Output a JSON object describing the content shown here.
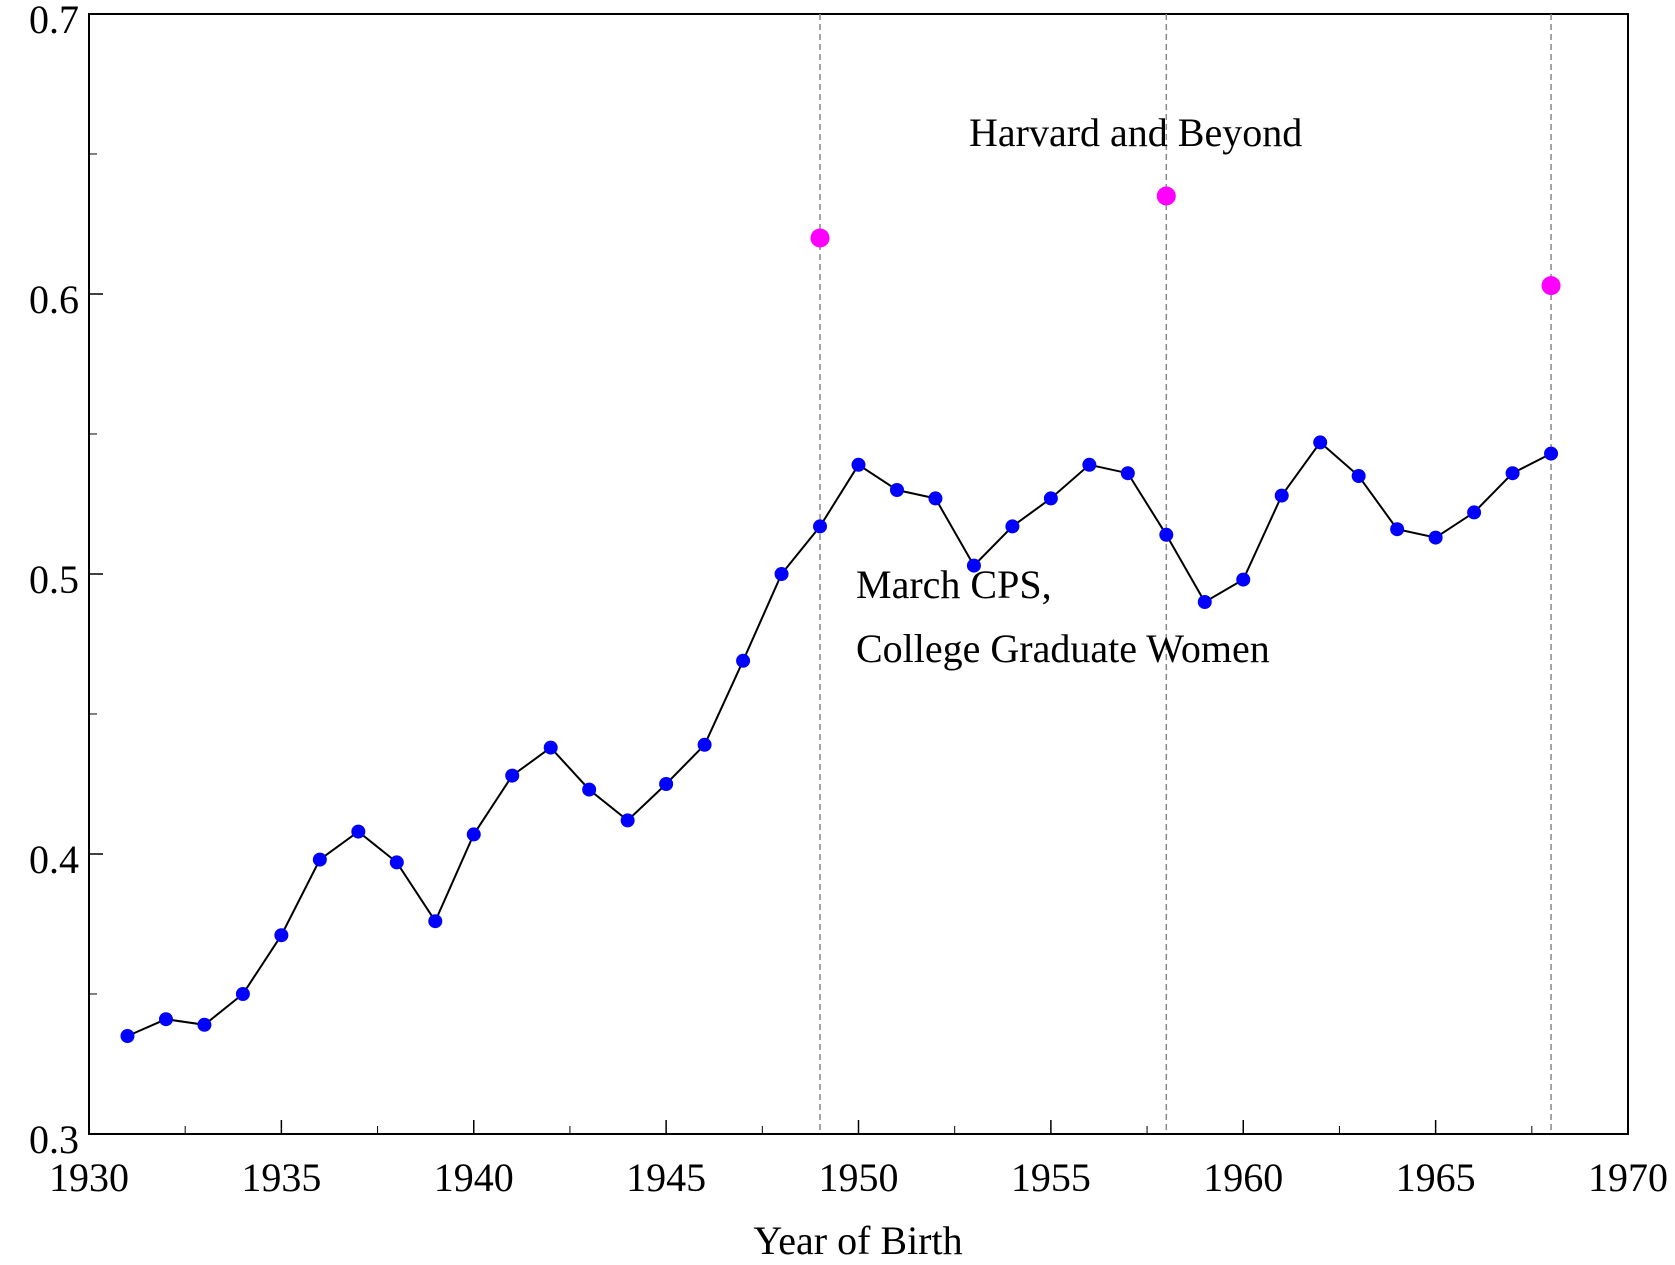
{
  "chart_data": {
    "type": "line",
    "x_label": "Year of Birth",
    "annotations": [
      "Harvard and Beyond",
      "March CPS,",
      "College Graduate Women"
    ],
    "series": [
      {
        "name": "March CPS, College Graduate Women",
        "color": "#0000ff",
        "line_color": "#000000",
        "line": true,
        "x": [
          1931,
          1932,
          1933,
          1934,
          1935,
          1936,
          1937,
          1938,
          1939,
          1940,
          1941,
          1942,
          1943,
          1944,
          1945,
          1946,
          1947,
          1948,
          1949,
          1950,
          1951,
          1952,
          1953,
          1954,
          1955,
          1956,
          1957,
          1958,
          1959,
          1960,
          1961,
          1962,
          1963,
          1964,
          1965,
          1966,
          1967,
          1968
        ],
        "values": [
          0.335,
          0.341,
          0.339,
          0.35,
          0.371,
          0.398,
          0.408,
          0.397,
          0.376,
          0.407,
          0.428,
          0.438,
          0.423,
          0.412,
          0.425,
          0.439,
          0.469,
          0.5,
          0.517,
          0.539,
          0.53,
          0.527,
          0.503,
          0.517,
          0.527,
          0.539,
          0.536,
          0.514,
          0.49,
          0.498,
          0.528,
          0.547,
          0.535,
          0.516,
          0.513,
          0.522,
          0.536,
          0.543
        ]
      },
      {
        "name": "Harvard and Beyond",
        "color": "#ff00ff",
        "line": false,
        "x": [
          1949,
          1958,
          1968
        ],
        "values": [
          0.62,
          0.635,
          0.603
        ]
      }
    ],
    "vlines": [
      1949,
      1958,
      1968
    ],
    "xlim": [
      1930,
      1970
    ],
    "xticks": [
      1930,
      1935,
      1940,
      1945,
      1950,
      1955,
      1960,
      1965,
      1970
    ],
    "xticks_minor": [
      1932.5,
      1937.5,
      1942.5,
      1947.5,
      1952.5,
      1957.5,
      1962.5,
      1967.5
    ],
    "ylim": [
      0.3,
      0.7
    ],
    "yticks": [
      0.3,
      0.4,
      0.5,
      0.6,
      0.7
    ],
    "yticks_minor": [
      0.35,
      0.45,
      0.55,
      0.65
    ]
  }
}
